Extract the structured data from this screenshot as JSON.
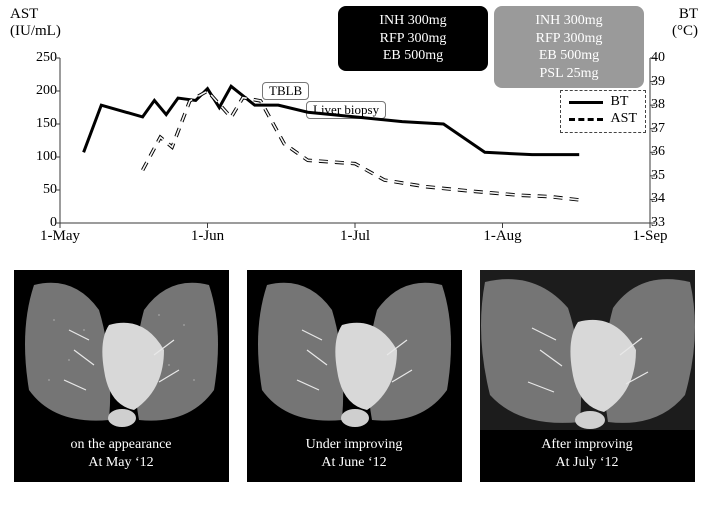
{
  "chart": {
    "left_axis": {
      "title_top": "AST",
      "title_bottom": "(IU/mL)",
      "min": 0,
      "max": 250,
      "ticks": [
        0,
        50,
        100,
        150,
        200,
        250
      ]
    },
    "right_axis": {
      "title_top": "BT",
      "title_bottom": "(°C)",
      "min": 33,
      "max": 40,
      "ticks": [
        33,
        34,
        35,
        36,
        37,
        38,
        39,
        40
      ]
    },
    "x_axis": {
      "labels": [
        "1-May",
        "1-Jun",
        "1-Jul",
        "1-Aug",
        "1-Sep"
      ],
      "positions": [
        0,
        0.25,
        0.5,
        0.75,
        1.0
      ]
    },
    "bt_series": {
      "label": "BT",
      "points": [
        [
          0.04,
          36.0
        ],
        [
          0.07,
          38.0
        ],
        [
          0.14,
          37.5
        ],
        [
          0.16,
          38.2
        ],
        [
          0.18,
          37.6
        ],
        [
          0.2,
          38.3
        ],
        [
          0.23,
          38.2
        ],
        [
          0.25,
          38.7
        ],
        [
          0.27,
          37.9
        ],
        [
          0.29,
          38.8
        ],
        [
          0.33,
          38.0
        ],
        [
          0.37,
          38.0
        ],
        [
          0.42,
          37.7
        ],
        [
          0.5,
          37.5
        ],
        [
          0.58,
          37.3
        ],
        [
          0.65,
          37.2
        ],
        [
          0.72,
          36.0
        ],
        [
          0.8,
          35.9
        ],
        [
          0.85,
          35.9
        ],
        [
          0.88,
          35.9
        ]
      ]
    },
    "ast_series": {
      "label": "AST",
      "points": [
        [
          0.14,
          80
        ],
        [
          0.17,
          130
        ],
        [
          0.19,
          115
        ],
        [
          0.22,
          185
        ],
        [
          0.25,
          200
        ],
        [
          0.29,
          160
        ],
        [
          0.31,
          190
        ],
        [
          0.34,
          185
        ],
        [
          0.38,
          120
        ],
        [
          0.42,
          95
        ],
        [
          0.5,
          90
        ],
        [
          0.55,
          65
        ],
        [
          0.62,
          55
        ],
        [
          0.7,
          48
        ],
        [
          0.78,
          42
        ],
        [
          0.83,
          40
        ],
        [
          0.88,
          35
        ]
      ]
    },
    "legend": {
      "bt": "BT",
      "ast": "AST"
    },
    "med_black": [
      "INH 300mg",
      "RFP 300mg",
      "EB 500mg"
    ],
    "med_gray": [
      "INH 300mg",
      "RFP 300mg",
      "EB 500mg",
      "PSL 25mg"
    ],
    "proc_tblb": "TBLB",
    "proc_liver": "Liver biopsy",
    "colors": {
      "bg": "#ffffff",
      "line": "#000000",
      "gray_box": "#9a9a9a",
      "axis": "#3a3a3a"
    }
  },
  "ct": {
    "panels": [
      {
        "line1": "on the appearance",
        "line2": "At May ‘12"
      },
      {
        "line1": "Under  improving",
        "line2": "At June ‘12"
      },
      {
        "line1": "After  improving",
        "line2": "At July ‘12"
      }
    ]
  }
}
